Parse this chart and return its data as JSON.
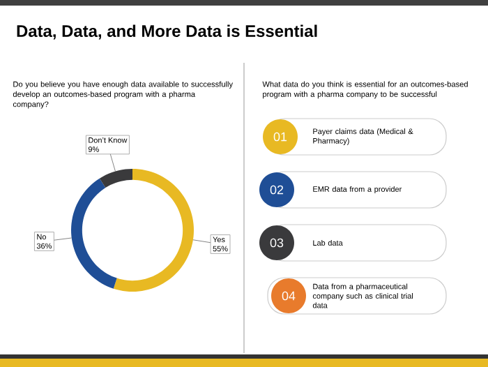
{
  "chart_data": [
    {
      "type": "donut",
      "title": "Data, Data, and More Data is Essential",
      "subtitle": "Do you believe you have enough data available to successfully develop an outcomes-based program with a pharma company?",
      "categories": [
        "Yes",
        "No",
        "Don’t Know"
      ],
      "values": [
        55,
        36,
        9
      ],
      "colors": [
        "#e8b923",
        "#1f4e96",
        "#3a3a3c"
      ],
      "value_labels": [
        "55%",
        "36%",
        "9%"
      ]
    },
    {
      "type": "other",
      "title": "What data do you think is essential for an outcomes-based program with a pharma company to be successful",
      "annotations": [
        "01",
        "Payer claims data (Medical & Pharmacy)",
        "02",
        "EMR data from a provider",
        "03",
        "Lab data",
        "04",
        "Data from a pharmaceutical company such as clinical trial data"
      ],
      "colors": [
        "#e8b923",
        "#1f4e96",
        "#3a3a3c",
        "#e87b2c"
      ]
    }
  ]
}
